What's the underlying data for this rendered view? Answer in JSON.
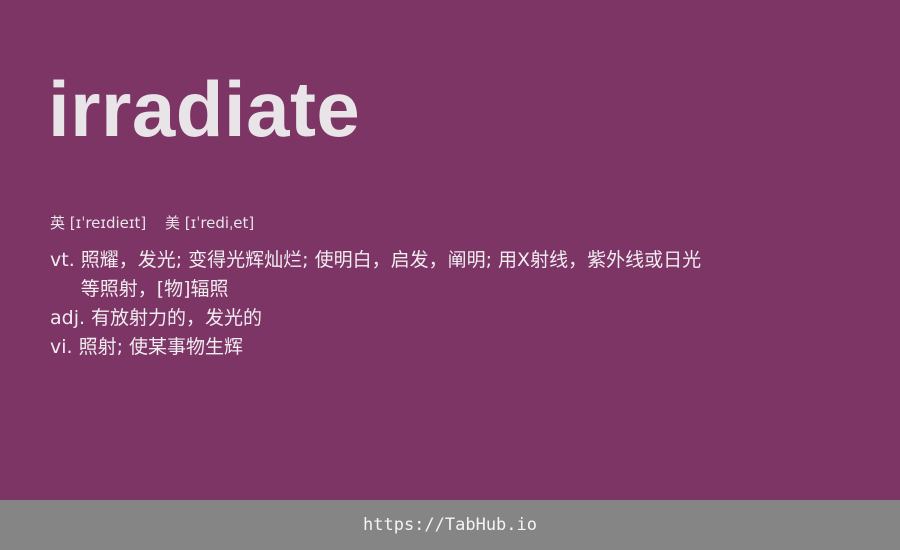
{
  "word": "irradiate",
  "phonetics": {
    "uk_label": "英",
    "uk_ipa": "[ɪˈreɪdieɪt]",
    "us_label": "美",
    "us_ipa": "[ɪˈrediˌet]"
  },
  "definitions": [
    {
      "pos": "vt.",
      "meaning": "照耀，发光; 变得光辉灿烂; 使明白，启发，阐明; 用X射线，紫外线或日光等照射，[物]辐照"
    },
    {
      "pos": "adj.",
      "meaning": "有放射力的，发光的"
    },
    {
      "pos": "vi.",
      "meaning": "照射; 使某事物生辉"
    }
  ],
  "footer": {
    "link": "https://TabHub.io"
  },
  "colors": {
    "background": "#7d3565",
    "footer": "#858585"
  }
}
